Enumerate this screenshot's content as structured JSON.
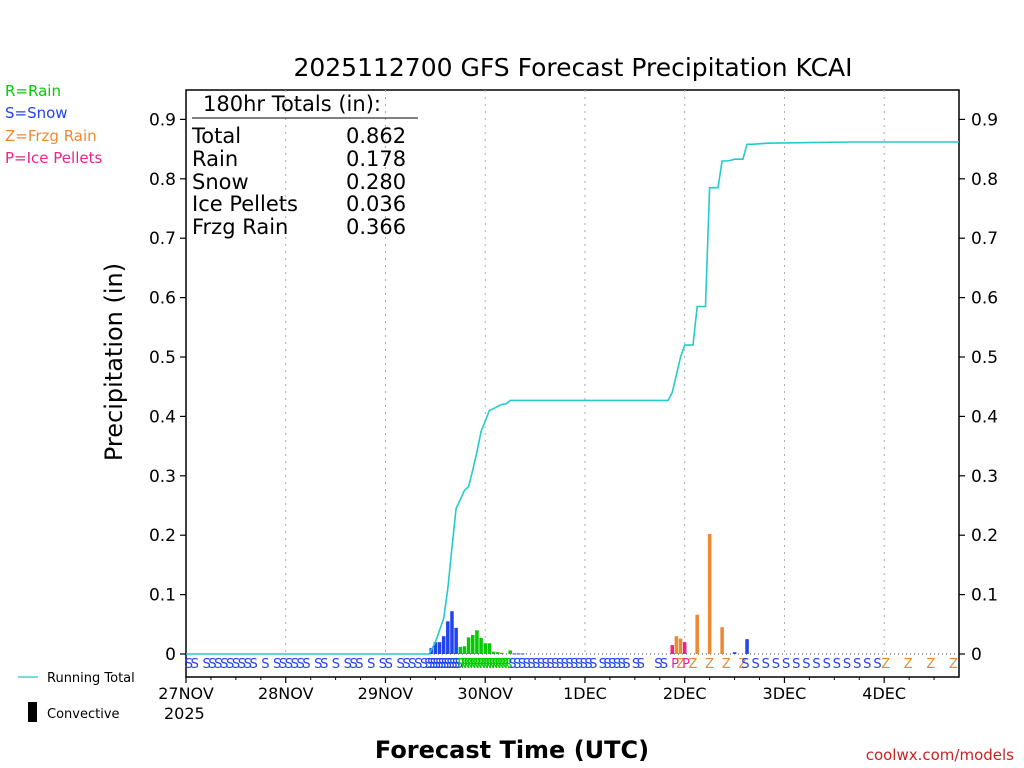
{
  "chart_data": {
    "type": "bar",
    "title": "2025112700 GFS Forecast Precipitation KCAI",
    "ylabel": "Precipitation (in)",
    "xlabel": "Forecast Time (UTC)",
    "ylim": [
      0,
      0.95
    ],
    "yticks": [
      "0",
      "0.1",
      "0.2",
      "0.3",
      "0.4",
      "0.5",
      "0.6",
      "0.7",
      "0.8",
      "0.9"
    ],
    "xlim_hours": [
      0,
      186
    ],
    "xticks": [
      {
        "hour": 0,
        "label": "27NOV"
      },
      {
        "hour": 24,
        "label": "28NOV"
      },
      {
        "hour": 48,
        "label": "29NOV"
      },
      {
        "hour": 72,
        "label": "30NOV"
      },
      {
        "hour": 96,
        "label": "1DEC"
      },
      {
        "hour": 120,
        "label": "2DEC"
      },
      {
        "hour": 144,
        "label": "3DEC"
      },
      {
        "hour": 168,
        "label": "4DEC"
      }
    ],
    "year_label": "2025",
    "legend_types": [
      {
        "label": "R=Rain",
        "color": "#00cc00"
      },
      {
        "label": "S=Snow",
        "color": "#2244ee"
      },
      {
        "label": "Z=Frzg Rain",
        "color": "#ee8833"
      },
      {
        "label": "P=Ice Pellets",
        "color": "#ee2288"
      }
    ],
    "totals_header": "180hr Totals (in):",
    "totals": [
      {
        "label": "Total",
        "value": "0.862"
      },
      {
        "label": "Rain",
        "value": "0.178"
      },
      {
        "label": "Snow",
        "value": "0.280"
      },
      {
        "label": "Ice Pellets",
        "value": "0.036"
      },
      {
        "label": "Frzg Rain",
        "value": "0.366"
      }
    ],
    "running_total_label": "Running Total",
    "convective_label": "Convective",
    "bars": [
      {
        "hour": 59,
        "value": 0.01,
        "type": "S"
      },
      {
        "hour": 60,
        "value": 0.02,
        "type": "S"
      },
      {
        "hour": 61,
        "value": 0.02,
        "type": "S"
      },
      {
        "hour": 62,
        "value": 0.03,
        "type": "S"
      },
      {
        "hour": 63,
        "value": 0.055,
        "type": "S"
      },
      {
        "hour": 64,
        "value": 0.072,
        "type": "S"
      },
      {
        "hour": 65,
        "value": 0.044,
        "type": "S"
      },
      {
        "hour": 66,
        "value": 0.012,
        "type": "R"
      },
      {
        "hour": 67,
        "value": 0.013,
        "type": "R"
      },
      {
        "hour": 68,
        "value": 0.028,
        "type": "R"
      },
      {
        "hour": 69,
        "value": 0.032,
        "type": "R"
      },
      {
        "hour": 70,
        "value": 0.04,
        "type": "R"
      },
      {
        "hour": 71,
        "value": 0.027,
        "type": "R"
      },
      {
        "hour": 72,
        "value": 0.018,
        "type": "R"
      },
      {
        "hour": 73,
        "value": 0.018,
        "type": "R"
      },
      {
        "hour": 74,
        "value": 0.004,
        "type": "R"
      },
      {
        "hour": 75,
        "value": 0.003,
        "type": "R"
      },
      {
        "hour": 76,
        "value": 0.002,
        "type": "R"
      },
      {
        "hour": 78,
        "value": 0.006,
        "type": "R"
      },
      {
        "hour": 79,
        "value": 0.001,
        "type": "S"
      },
      {
        "hour": 80,
        "value": 0.001,
        "type": "S"
      },
      {
        "hour": 81,
        "value": 0.001,
        "type": "S"
      },
      {
        "hour": 117,
        "value": 0.015,
        "type": "P"
      },
      {
        "hour": 118,
        "value": 0.03,
        "type": "Z"
      },
      {
        "hour": 119,
        "value": 0.026,
        "type": "Z"
      },
      {
        "hour": 120,
        "value": 0.02,
        "type": "P"
      },
      {
        "hour": 123,
        "value": 0.066,
        "type": "Z"
      },
      {
        "hour": 126,
        "value": 0.202,
        "type": "Z"
      },
      {
        "hour": 129,
        "value": 0.045,
        "type": "Z"
      },
      {
        "hour": 132,
        "value": 0.003,
        "type": "S"
      },
      {
        "hour": 135,
        "value": 0.025,
        "type": "S"
      }
    ],
    "running_total": [
      [
        0,
        0
      ],
      [
        58.5,
        0
      ],
      [
        60,
        0.02
      ],
      [
        62,
        0.06
      ],
      [
        63,
        0.11
      ],
      [
        64,
        0.18
      ],
      [
        65,
        0.245
      ],
      [
        66,
        0.26
      ],
      [
        67,
        0.275
      ],
      [
        68,
        0.282
      ],
      [
        69,
        0.31
      ],
      [
        70,
        0.34
      ],
      [
        71,
        0.375
      ],
      [
        72,
        0.392
      ],
      [
        73,
        0.41
      ],
      [
        74,
        0.413
      ],
      [
        75,
        0.417
      ],
      [
        76,
        0.42
      ],
      [
        77,
        0.421
      ],
      [
        78,
        0.427
      ],
      [
        85,
        0.427
      ],
      [
        95,
        0.427
      ],
      [
        105,
        0.427
      ],
      [
        116,
        0.427
      ],
      [
        117,
        0.44
      ],
      [
        118,
        0.47
      ],
      [
        119,
        0.5
      ],
      [
        120,
        0.52
      ],
      [
        121,
        0.52
      ],
      [
        122,
        0.52
      ],
      [
        123,
        0.585
      ],
      [
        124,
        0.585
      ],
      [
        125,
        0.585
      ],
      [
        126,
        0.785
      ],
      [
        127,
        0.785
      ],
      [
        128,
        0.785
      ],
      [
        129,
        0.83
      ],
      [
        130,
        0.83
      ],
      [
        131,
        0.831
      ],
      [
        132,
        0.833
      ],
      [
        134,
        0.833
      ],
      [
        135,
        0.858
      ],
      [
        136,
        0.858
      ],
      [
        140,
        0.86
      ],
      [
        150,
        0.861
      ],
      [
        160,
        0.862
      ],
      [
        186,
        0.862
      ]
    ],
    "type_strip": [
      {
        "start": 0,
        "end": 58,
        "pattern": "SS SSSSSSSSS S SSSSSS SS S SSS S SS SSSSS"
      },
      {
        "start": 58,
        "end": 66,
        "pattern": "SSSSSSSSSSSS"
      },
      {
        "start": 66,
        "end": 78,
        "pattern": "RRRRRRRRRRRRRRRR"
      },
      {
        "start": 78,
        "end": 110,
        "pattern": "SSSSSSSSSSSSSSSSSS SSSSSS SS"
      },
      {
        "start": 113,
        "end": 121,
        "pattern": "SS PZP"
      },
      {
        "start": 121,
        "end": 135,
        "pattern": "Z Z Z Z"
      },
      {
        "start": 134,
        "end": 167,
        "pattern": "S S S S S S S S S S S S S S"
      },
      {
        "start": 167,
        "end": 186,
        "pattern": "Z Z Z Z"
      }
    ],
    "colors": {
      "rain": "#00cc00",
      "snow": "#2244ee",
      "frzg": "#ee8833",
      "ice": "#ee2288",
      "running": "#22cccc",
      "watermark": "#cc2222"
    }
  },
  "credit": "coolwx.com/models"
}
